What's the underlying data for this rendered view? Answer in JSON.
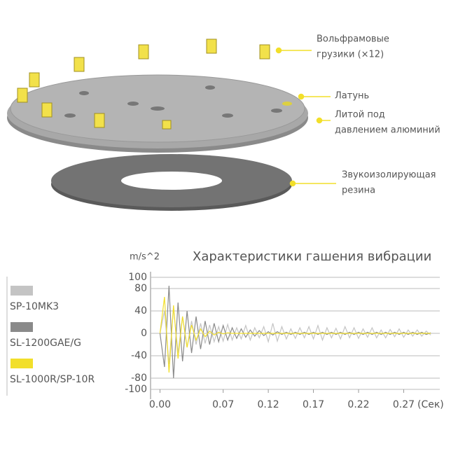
{
  "diagram": {
    "labels": [
      {
        "lines": [
          "Вольфрамовые",
          "грузики (×12)"
        ]
      },
      {
        "lines": [
          "Латунь"
        ]
      },
      {
        "lines": [
          "Литой под",
          "давлением алюминий"
        ]
      },
      {
        "lines": [
          "Звукоизолирующая",
          "резина"
        ]
      }
    ]
  },
  "chart_data": {
    "type": "line",
    "title": "Характеристики гашения вибрации",
    "y_unit": "m/s^2",
    "x_unit": "(Сек)",
    "x": [
      0,
      0.005,
      0.01,
      0.015,
      0.02,
      0.025,
      0.03,
      0.035,
      0.04,
      0.045,
      0.05,
      0.055,
      0.06,
      0.065,
      0.07,
      0.075,
      0.08,
      0.085,
      0.09,
      0.095,
      0.1,
      0.105,
      0.11,
      0.115,
      0.12,
      0.125,
      0.13,
      0.135,
      0.14,
      0.145,
      0.15,
      0.155,
      0.16,
      0.165,
      0.17,
      0.175,
      0.18,
      0.185,
      0.19,
      0.195,
      0.2,
      0.205,
      0.21,
      0.215,
      0.22,
      0.225,
      0.23,
      0.235,
      0.24,
      0.245,
      0.25,
      0.255,
      0.26,
      0.265,
      0.27,
      0.275,
      0.28,
      0.285,
      0.29,
      0.295,
      0.3
    ],
    "series": [
      {
        "name": "SP-10MK3",
        "color": "#c4c4c4",
        "values": [
          0,
          40,
          -55,
          45,
          -35,
          30,
          -25,
          22,
          -20,
          18,
          -18,
          15,
          -15,
          12,
          -14,
          16,
          -12,
          10,
          -10,
          14,
          -12,
          10,
          -8,
          12,
          -15,
          18,
          -14,
          12,
          -10,
          8,
          -9,
          10,
          -8,
          12,
          -10,
          14,
          -12,
          10,
          -8,
          9,
          -10,
          12,
          -8,
          10,
          -9,
          8,
          -7,
          10,
          -8,
          6,
          -8,
          7,
          -6,
          8,
          -7,
          6,
          -5,
          6,
          -5,
          4,
          -3
        ]
      },
      {
        "name": "SL-1200GAE/G",
        "color": "#8a8a8a",
        "values": [
          0,
          -60,
          85,
          -80,
          55,
          -50,
          40,
          -35,
          30,
          -28,
          22,
          -20,
          18,
          -15,
          14,
          -12,
          10,
          -9,
          8,
          -7,
          6,
          -5,
          5,
          -4,
          3,
          -3,
          3,
          -2,
          2,
          -2,
          2,
          -2,
          2,
          -2,
          2,
          -2,
          2,
          -2,
          2,
          -2,
          2,
          -2,
          2,
          -2,
          2,
          -2,
          2,
          -2,
          2,
          -2,
          2,
          -2,
          2,
          -2,
          2,
          -2,
          2,
          -2,
          2,
          -2,
          1
        ]
      },
      {
        "name": "SL-1000R/SP-10R",
        "color": "#f2df2a",
        "values": [
          0,
          65,
          -70,
          50,
          -45,
          30,
          -25,
          15,
          -12,
          8,
          -6,
          4,
          -3,
          2,
          -1,
          1,
          0,
          0,
          0,
          0,
          0,
          0,
          0,
          0,
          0,
          0,
          0,
          0,
          0,
          0,
          0,
          0,
          0,
          0,
          0,
          0,
          0,
          0,
          0,
          0,
          0,
          0,
          0,
          0,
          0,
          0,
          0,
          0,
          0,
          0,
          0,
          0,
          0,
          0,
          0,
          0,
          0,
          0,
          0,
          0,
          0
        ]
      }
    ],
    "xlim": [
      -0.005,
      0.31
    ],
    "xticks": [
      {
        "value": 0,
        "label": "0.00"
      },
      0.07,
      0.12,
      0.17,
      0.22,
      0.27
    ],
    "ylim": [
      -100,
      100
    ],
    "yticks": [
      100,
      80,
      40,
      0,
      -40,
      -80,
      -100
    ],
    "grid": true
  }
}
